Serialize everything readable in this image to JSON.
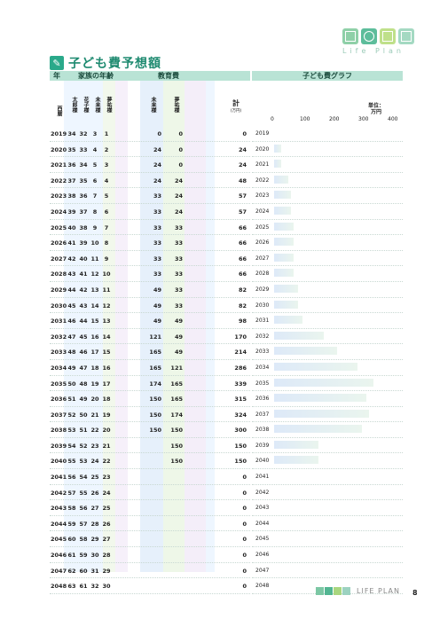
{
  "logo": {
    "text": "Life Plan",
    "colors": [
      "#8fd0a8",
      "#5dbd9b",
      "#bfe08a",
      "#a4d9c2"
    ],
    "icons": [
      "house-icon",
      "globe-icon",
      "heart-icon",
      "tree-icon"
    ]
  },
  "title": "子ども費予想額",
  "header": {
    "year": "年",
    "family": "家族の年齢",
    "education": "教育費",
    "chart": "子ども費グラフ",
    "western": "西暦",
    "members": [
      "太郎様",
      "花子様",
      "未来様",
      "夢祐様"
    ],
    "edu_members": [
      "未来様",
      "夢祐様"
    ],
    "total": "計",
    "total_unit": "(万円)",
    "unit_label": "単位：",
    "unit": "万円"
  },
  "chart_data": {
    "type": "bar",
    "orientation": "horizontal",
    "title": "子ども費グラフ",
    "xlabel": "単位：万円",
    "ticks": [
      "0",
      "100",
      "200",
      "300",
      "400"
    ],
    "xlim": [
      0,
      400
    ],
    "series": [
      {
        "values": [
          0,
          24,
          24,
          48,
          57,
          57,
          66,
          66,
          66,
          66,
          82,
          82,
          98,
          170,
          214,
          286,
          339,
          315,
          324,
          300,
          150,
          150,
          0,
          0,
          0,
          0,
          0,
          0,
          0,
          0
        ]
      }
    ]
  },
  "rows": [
    {
      "year": "2019",
      "a": "34",
      "b": "32",
      "c": "3",
      "d": "1",
      "e1": "0",
      "e2": "0",
      "total": "0"
    },
    {
      "year": "2020",
      "a": "35",
      "b": "33",
      "c": "4",
      "d": "2",
      "e1": "24",
      "e2": "0",
      "total": "24"
    },
    {
      "year": "2021",
      "a": "36",
      "b": "34",
      "c": "5",
      "d": "3",
      "e1": "24",
      "e2": "0",
      "total": "24"
    },
    {
      "year": "2022",
      "a": "37",
      "b": "35",
      "c": "6",
      "d": "4",
      "e1": "24",
      "e2": "24",
      "total": "48"
    },
    {
      "year": "2023",
      "a": "38",
      "b": "36",
      "c": "7",
      "d": "5",
      "e1": "33",
      "e2": "24",
      "total": "57"
    },
    {
      "year": "2024",
      "a": "39",
      "b": "37",
      "c": "8",
      "d": "6",
      "e1": "33",
      "e2": "24",
      "total": "57"
    },
    {
      "year": "2025",
      "a": "40",
      "b": "38",
      "c": "9",
      "d": "7",
      "e1": "33",
      "e2": "33",
      "total": "66"
    },
    {
      "year": "2026",
      "a": "41",
      "b": "39",
      "c": "10",
      "d": "8",
      "e1": "33",
      "e2": "33",
      "total": "66"
    },
    {
      "year": "2027",
      "a": "42",
      "b": "40",
      "c": "11",
      "d": "9",
      "e1": "33",
      "e2": "33",
      "total": "66"
    },
    {
      "year": "2028",
      "a": "43",
      "b": "41",
      "c": "12",
      "d": "10",
      "e1": "33",
      "e2": "33",
      "total": "66"
    },
    {
      "year": "2029",
      "a": "44",
      "b": "42",
      "c": "13",
      "d": "11",
      "e1": "49",
      "e2": "33",
      "total": "82"
    },
    {
      "year": "2030",
      "a": "45",
      "b": "43",
      "c": "14",
      "d": "12",
      "e1": "49",
      "e2": "33",
      "total": "82"
    },
    {
      "year": "2031",
      "a": "46",
      "b": "44",
      "c": "15",
      "d": "13",
      "e1": "49",
      "e2": "49",
      "total": "98"
    },
    {
      "year": "2032",
      "a": "47",
      "b": "45",
      "c": "16",
      "d": "14",
      "e1": "121",
      "e2": "49",
      "total": "170"
    },
    {
      "year": "2033",
      "a": "48",
      "b": "46",
      "c": "17",
      "d": "15",
      "e1": "165",
      "e2": "49",
      "total": "214"
    },
    {
      "year": "2034",
      "a": "49",
      "b": "47",
      "c": "18",
      "d": "16",
      "e1": "165",
      "e2": "121",
      "total": "286"
    },
    {
      "year": "2035",
      "a": "50",
      "b": "48",
      "c": "19",
      "d": "17",
      "e1": "174",
      "e2": "165",
      "total": "339"
    },
    {
      "year": "2036",
      "a": "51",
      "b": "49",
      "c": "20",
      "d": "18",
      "e1": "150",
      "e2": "165",
      "total": "315"
    },
    {
      "year": "2037",
      "a": "52",
      "b": "50",
      "c": "21",
      "d": "19",
      "e1": "150",
      "e2": "174",
      "total": "324"
    },
    {
      "year": "2038",
      "a": "53",
      "b": "51",
      "c": "22",
      "d": "20",
      "e1": "150",
      "e2": "150",
      "total": "300"
    },
    {
      "year": "2039",
      "a": "54",
      "b": "52",
      "c": "23",
      "d": "21",
      "e1": "",
      "e2": "150",
      "total": "150"
    },
    {
      "year": "2040",
      "a": "55",
      "b": "53",
      "c": "24",
      "d": "22",
      "e1": "",
      "e2": "150",
      "total": "150"
    },
    {
      "year": "2041",
      "a": "56",
      "b": "54",
      "c": "25",
      "d": "23",
      "e1": "",
      "e2": "",
      "total": "0"
    },
    {
      "year": "2042",
      "a": "57",
      "b": "55",
      "c": "26",
      "d": "24",
      "e1": "",
      "e2": "",
      "total": "0"
    },
    {
      "year": "2043",
      "a": "58",
      "b": "56",
      "c": "27",
      "d": "25",
      "e1": "",
      "e2": "",
      "total": "0"
    },
    {
      "year": "2044",
      "a": "59",
      "b": "57",
      "c": "28",
      "d": "26",
      "e1": "",
      "e2": "",
      "total": "0"
    },
    {
      "year": "2045",
      "a": "60",
      "b": "58",
      "c": "29",
      "d": "27",
      "e1": "",
      "e2": "",
      "total": "0"
    },
    {
      "year": "2046",
      "a": "61",
      "b": "59",
      "c": "30",
      "d": "28",
      "e1": "",
      "e2": "",
      "total": "0"
    },
    {
      "year": "2047",
      "a": "62",
      "b": "60",
      "c": "31",
      "d": "29",
      "e1": "",
      "e2": "",
      "total": "0"
    },
    {
      "year": "2048",
      "a": "63",
      "b": "61",
      "c": "32",
      "d": "30",
      "e1": "",
      "e2": "",
      "total": "0"
    }
  ],
  "footer": {
    "text": "LIFE PLAN",
    "page": "8",
    "colors": [
      "#7cc7a4",
      "#52b592",
      "#a9d67f",
      "#9cd2c0"
    ]
  }
}
